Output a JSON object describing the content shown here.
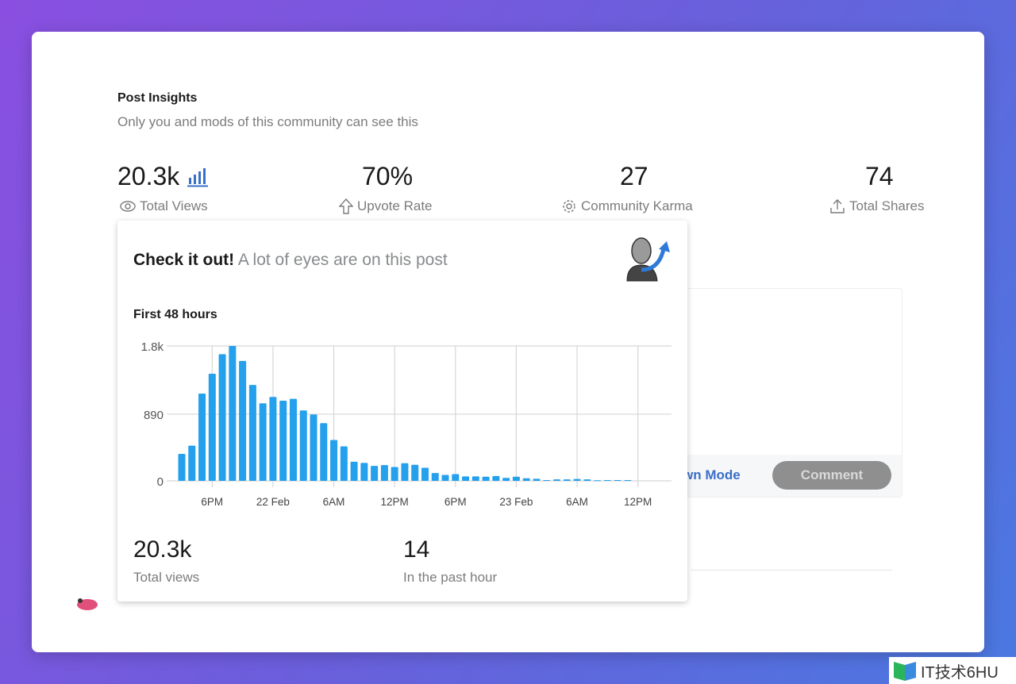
{
  "header": {
    "title": "Post Insights",
    "subtitle": "Only you and mods of this community can see this"
  },
  "stats": [
    {
      "value": "20.3k",
      "label": "Total Views",
      "icon": "eye-icon"
    },
    {
      "value": "70%",
      "label": "Upvote Rate",
      "icon": "upvote-arrow-icon"
    },
    {
      "value": "27",
      "label": "Community Karma",
      "icon": "karma-gear-icon"
    },
    {
      "value": "74",
      "label": "Total Shares",
      "icon": "share-icon"
    }
  ],
  "comment": {
    "markdown_label": "wn Mode",
    "button_label": "Comment"
  },
  "popup": {
    "title_bold": "Check it out!",
    "title_rest": " A lot of eyes are on this post",
    "total_views": "20.3k",
    "total_views_label": "Total views",
    "past_hour": "14",
    "past_hour_label": "In the past hour"
  },
  "chart_data": {
    "type": "bar",
    "title": "First 48 hours",
    "xlabel": "",
    "ylabel": "",
    "ylim": [
      0,
      1800
    ],
    "yticks": [
      {
        "value": 0,
        "label": "0"
      },
      {
        "value": 890,
        "label": "890"
      },
      {
        "value": 1800,
        "label": "1.8k"
      }
    ],
    "xticks": [
      {
        "index": 3,
        "label": "6PM"
      },
      {
        "index": 9,
        "label": "22 Feb"
      },
      {
        "index": 15,
        "label": "6AM"
      },
      {
        "index": 21,
        "label": "12PM"
      },
      {
        "index": 27,
        "label": "6PM"
      },
      {
        "index": 33,
        "label": "23 Feb"
      },
      {
        "index": 39,
        "label": "6AM"
      },
      {
        "index": 45,
        "label": "12PM"
      }
    ],
    "values": [
      360,
      470,
      1165,
      1430,
      1690,
      1800,
      1600,
      1280,
      1035,
      1120,
      1070,
      1095,
      940,
      885,
      770,
      545,
      460,
      255,
      240,
      200,
      210,
      185,
      235,
      215,
      175,
      105,
      80,
      90,
      60,
      60,
      55,
      65,
      40,
      55,
      35,
      28,
      10,
      20,
      20,
      25,
      20,
      8,
      10,
      10,
      10
    ],
    "color": "#24a0ed"
  },
  "watermark": "IT技术6HU"
}
